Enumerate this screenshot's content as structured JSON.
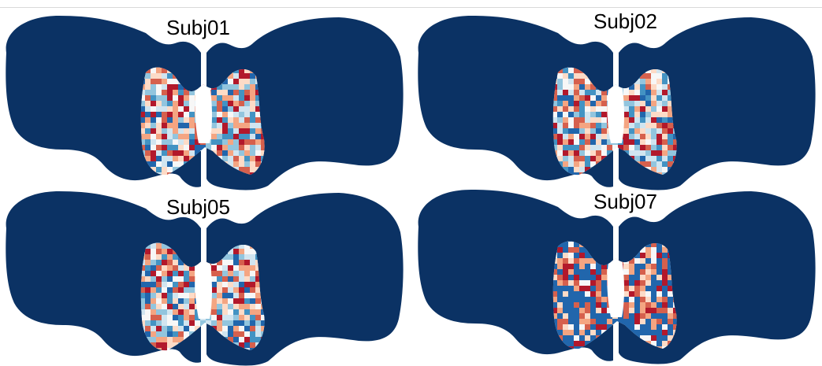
{
  "panels": [
    {
      "label": "Subj01"
    },
    {
      "label": "Subj02"
    },
    {
      "label": "Subj05"
    },
    {
      "label": "Subj07"
    }
  ],
  "colors": {
    "background_map": "#0b3264",
    "positive": "#c0392b",
    "negative": "#2166ac",
    "neutral": "#f4f4f4"
  }
}
